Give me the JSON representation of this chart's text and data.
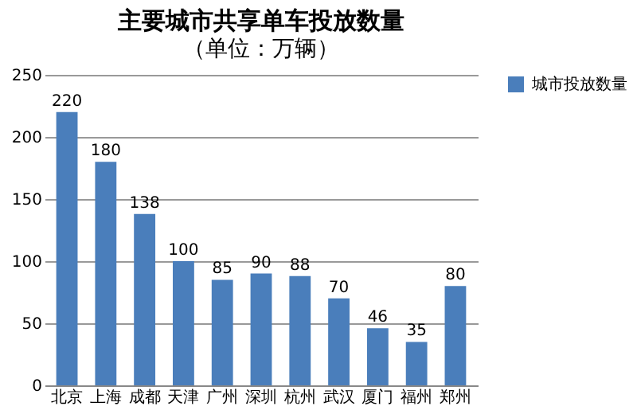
{
  "chart_data": {
    "type": "bar",
    "title": "主要城市共享单车投放数量",
    "subtitle": "（单位：万辆）",
    "categories": [
      "北京",
      "上海",
      "成都",
      "天津",
      "广州",
      "深圳",
      "杭州",
      "武汉",
      "厦门",
      "福州",
      "郑州"
    ],
    "series": [
      {
        "name": "城市投放数量",
        "color": "#4a7ebb",
        "values": [
          220,
          180,
          138,
          100,
          85,
          90,
          88,
          70,
          46,
          35,
          80
        ]
      }
    ],
    "ylim": [
      0,
      250
    ],
    "yticks": [
      0,
      50,
      100,
      150,
      200,
      250
    ],
    "grid": "y",
    "legend": "right",
    "data_labels": true
  }
}
